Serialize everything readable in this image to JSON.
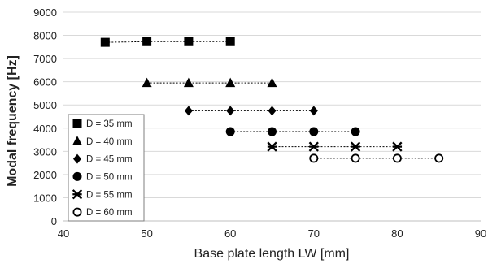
{
  "chart_data": {
    "type": "scatter",
    "xlabel": "Base plate length LW [mm]",
    "ylabel": "Modal frequency [Hz]",
    "xlim": [
      40,
      90
    ],
    "ylim": [
      0,
      9000
    ],
    "x_ticks": [
      40,
      50,
      60,
      70,
      80,
      90
    ],
    "y_ticks": [
      0,
      1000,
      2000,
      3000,
      4000,
      5000,
      6000,
      7000,
      8000,
      9000
    ],
    "grid": "horizontal",
    "legend_position": "bottom-left",
    "line_style": "dashed",
    "series": [
      {
        "name": "D = 35 mm",
        "marker": "square",
        "points": [
          {
            "x": 45,
            "y": 7700
          },
          {
            "x": 50,
            "y": 7730
          },
          {
            "x": 55,
            "y": 7730
          },
          {
            "x": 60,
            "y": 7730
          }
        ]
      },
      {
        "name": "D = 40 mm",
        "marker": "triangle",
        "points": [
          {
            "x": 50,
            "y": 5950
          },
          {
            "x": 55,
            "y": 5950
          },
          {
            "x": 60,
            "y": 5950
          },
          {
            "x": 65,
            "y": 5950
          }
        ]
      },
      {
        "name": "D = 45 mm",
        "marker": "diamond",
        "points": [
          {
            "x": 55,
            "y": 4750
          },
          {
            "x": 60,
            "y": 4750
          },
          {
            "x": 65,
            "y": 4750
          },
          {
            "x": 70,
            "y": 4750
          }
        ]
      },
      {
        "name": "D = 50 mm",
        "marker": "circle",
        "points": [
          {
            "x": 60,
            "y": 3850
          },
          {
            "x": 65,
            "y": 3850
          },
          {
            "x": 70,
            "y": 3850
          },
          {
            "x": 75,
            "y": 3850
          }
        ]
      },
      {
        "name": "D = 55 mm",
        "marker": "star",
        "points": [
          {
            "x": 65,
            "y": 3200
          },
          {
            "x": 70,
            "y": 3200
          },
          {
            "x": 75,
            "y": 3200
          },
          {
            "x": 80,
            "y": 3200
          }
        ]
      },
      {
        "name": "D = 60 mm",
        "marker": "open-circle",
        "points": [
          {
            "x": 70,
            "y": 2700
          },
          {
            "x": 75,
            "y": 2700
          },
          {
            "x": 80,
            "y": 2700
          },
          {
            "x": 85,
            "y": 2700
          }
        ]
      }
    ]
  }
}
